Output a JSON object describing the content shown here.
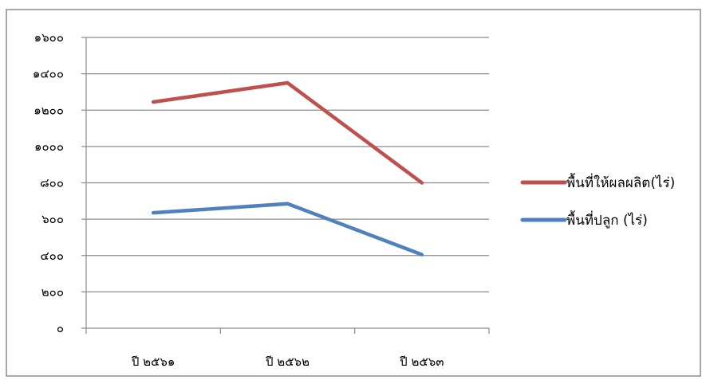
{
  "chart_data": {
    "type": "line",
    "title": "",
    "xlabel": "",
    "ylabel": "",
    "categories": [
      "ปี ๒๕๖๑",
      "ปี ๒๕๖๒",
      "ปี ๒๕๖๓"
    ],
    "y_ticks": [
      0,
      200,
      400,
      600,
      800,
      1000,
      1200,
      1400,
      1600
    ],
    "y_tick_labels": [
      "๐",
      "๒๐๐",
      "๔๐๐",
      "๖๐๐",
      "๘๐๐",
      "๑๐๐๐",
      "๑๒๐๐",
      "๑๔๐๐",
      "๑๖๐๐"
    ],
    "ylim": [
      0,
      1600
    ],
    "grid": true,
    "legend_position": "right",
    "series": [
      {
        "name": "พื้นที่ให้ผลผลิต(ไร่)",
        "color": "#c0504d",
        "values": [
          1245,
          1350,
          800
        ]
      },
      {
        "name": "พื้นที่ปลูก (ไร่)",
        "color": "#4f81bd",
        "values": [
          635,
          685,
          405
        ]
      }
    ]
  }
}
